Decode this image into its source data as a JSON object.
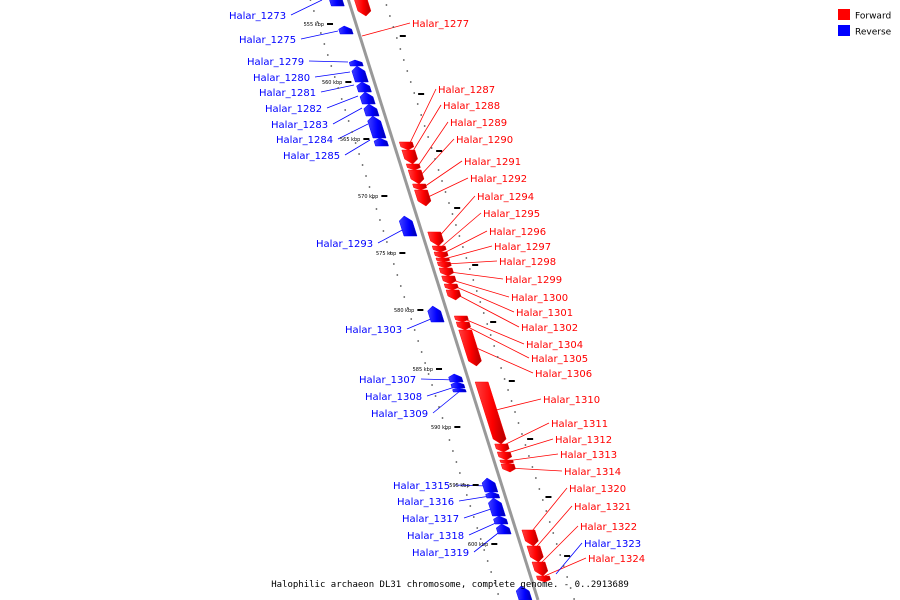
{
  "caption": "Halophilic archaeon DL31 chromosome, complete genome. - 0..2913689",
  "legend": [
    {
      "label": "Forward",
      "color": "#ff0000"
    },
    {
      "label": "Reverse",
      "color": "#0000ff"
    }
  ],
  "colors": {
    "forward": "#ff0000",
    "reverse": "#0000ff",
    "axis": "#999999",
    "tick": "#000000"
  },
  "scale": {
    "start_kbp": 555,
    "end_kbp": 600,
    "step_kbp": 5,
    "labels": [
      "555 kbp",
      "560 kbp",
      "565 kbp",
      "570 kbp",
      "575 kbp",
      "580 kbp",
      "585 kbp",
      "590 kbp",
      "595 kbp",
      "600 kbp"
    ]
  },
  "genes_forward": [
    "Halar_1277",
    "Halar_1287",
    "Halar_1288",
    "Halar_1289",
    "Halar_1290",
    "Halar_1291",
    "Halar_1292",
    "Halar_1294",
    "Halar_1295",
    "Halar_1296",
    "Halar_1297",
    "Halar_1298",
    "Halar_1299",
    "Halar_1300",
    "Halar_1301",
    "Halar_1302",
    "Halar_1304",
    "Halar_1305",
    "Halar_1306",
    "Halar_1310",
    "Halar_1311",
    "Halar_1312",
    "Halar_1313",
    "Halar_1314",
    "Halar_1320",
    "Halar_1321",
    "Halar_1322",
    "Halar_1324"
  ],
  "genes_reverse": [
    "Halar_1273",
    "Halar_1275",
    "Halar_1279",
    "Halar_1280",
    "Halar_1281",
    "Halar_1282",
    "Halar_1283",
    "Halar_1284",
    "Halar_1285",
    "Halar_1293",
    "Halar_1303",
    "Halar_1307",
    "Halar_1308",
    "Halar_1309",
    "Halar_1315",
    "Halar_1316",
    "Halar_1317",
    "Halar_1318",
    "Halar_1319",
    "Halar_1323"
  ]
}
